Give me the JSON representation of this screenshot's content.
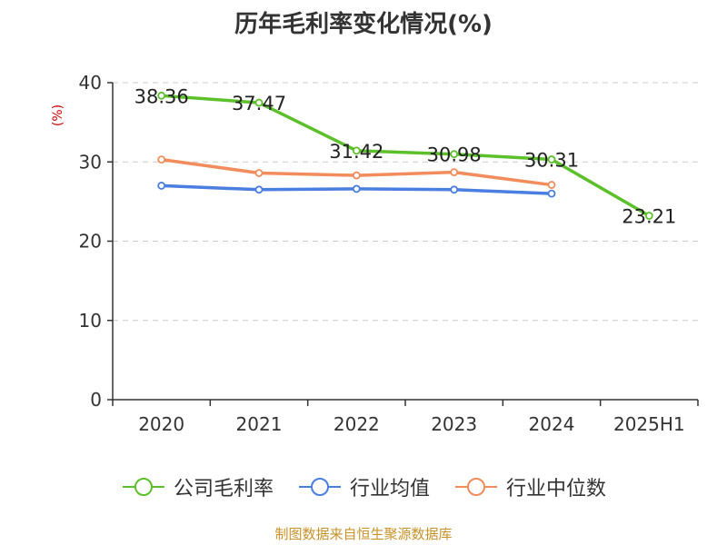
{
  "title": "历年毛利率变化情况(%)",
  "source": "制图数据来自恒生聚源数据库",
  "colors": {
    "title": "#333333",
    "axis": "#333333",
    "grid": "#cccccc",
    "unit": "#cc0000",
    "source": "#c8922a"
  },
  "chart_data": {
    "type": "line",
    "title": "历年毛利率变化情况(%)",
    "ylabel": "(%)",
    "xlabel": "",
    "categories": [
      "2020",
      "2021",
      "2022",
      "2023",
      "2024",
      "2025H1"
    ],
    "ylim": [
      0,
      40
    ],
    "yticks": [
      0,
      10,
      20,
      30,
      40
    ],
    "grid": true,
    "grid_style": "dashed",
    "legend_position": "bottom",
    "series": [
      {
        "name": "公司毛利率",
        "color": "#5cc02b",
        "values": [
          38.36,
          37.47,
          31.42,
          30.98,
          30.31,
          23.21
        ],
        "labels": [
          "38.36",
          "37.47",
          "31.42",
          "30.98",
          "30.31",
          "23.21"
        ]
      },
      {
        "name": "行业均值",
        "color": "#4a7ee0",
        "values": [
          27.0,
          26.5,
          26.6,
          26.5,
          26.0,
          null
        ]
      },
      {
        "name": "行业中位数",
        "color": "#f28c5c",
        "values": [
          30.3,
          28.6,
          28.3,
          28.7,
          27.1,
          null
        ]
      }
    ]
  }
}
